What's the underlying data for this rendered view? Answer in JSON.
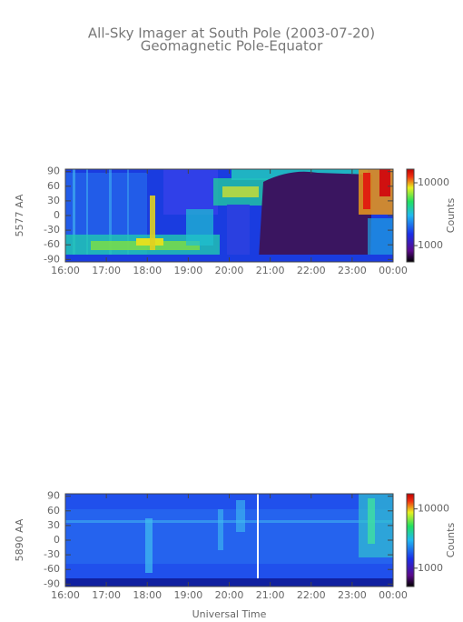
{
  "chart_data": [
    {
      "type": "heatmap",
      "title": "All-Sky Imager at South Pole (2003-07-20)",
      "subtitle": "Geomagnetic Pole-Equator",
      "ylabel": "5577 AA",
      "xlim": [
        16,
        24
      ],
      "xticks": [
        {
          "value": 16,
          "label": "16:00"
        },
        {
          "value": 17,
          "label": "17:00"
        },
        {
          "value": 18,
          "label": "18:00"
        },
        {
          "value": 19,
          "label": "19:00"
        },
        {
          "value": 20,
          "label": "20:00"
        },
        {
          "value": 21,
          "label": "21:00"
        },
        {
          "value": 22,
          "label": "22:00"
        },
        {
          "value": 23,
          "label": "23:00"
        },
        {
          "value": 24,
          "label": "00:00"
        }
      ],
      "ylim": [
        -95,
        95
      ],
      "yticks": [
        90,
        60,
        30,
        0,
        -30,
        -60,
        -90
      ],
      "colorbar": {
        "label": "Counts",
        "log_scale": true,
        "lim": [
          550,
          16500
        ],
        "ticks": [
          1000,
          10000
        ]
      }
    },
    {
      "type": "heatmap",
      "ylabel": "5890 AA",
      "xlabel": "Universal Time",
      "xlim": [
        16,
        24
      ],
      "xticks": [
        {
          "value": 16,
          "label": "16:00"
        },
        {
          "value": 17,
          "label": "17:00"
        },
        {
          "value": 18,
          "label": "18:00"
        },
        {
          "value": 19,
          "label": "19:00"
        },
        {
          "value": 20,
          "label": "20:00"
        },
        {
          "value": 21,
          "label": "21:00"
        },
        {
          "value": 22,
          "label": "22:00"
        },
        {
          "value": 23,
          "label": "23:00"
        },
        {
          "value": 24,
          "label": "00:00"
        }
      ],
      "ylim": [
        -95,
        95
      ],
      "yticks": [
        90,
        60,
        30,
        0,
        -30,
        -60,
        -90
      ],
      "colorbar": {
        "label": "Counts",
        "log_scale": true,
        "lim": [
          490,
          18000
        ],
        "ticks": [
          1000,
          10000
        ]
      }
    }
  ]
}
